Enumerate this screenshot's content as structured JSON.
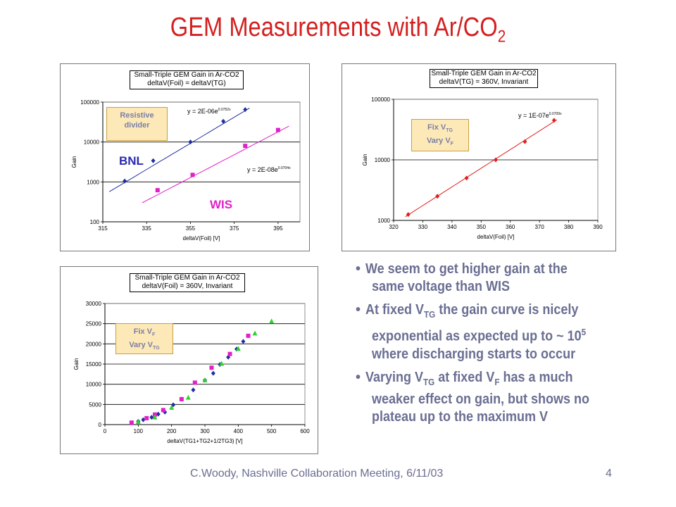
{
  "slide": {
    "title_main": "GEM Measurements with Ar/CO",
    "title_sub": "2",
    "footer": "C.Woody, Nashville Collaboration Meeting, 6/11/03",
    "page_number": "4",
    "title_color": "#d42020",
    "text_color": "#6a6e92"
  },
  "bullets": [
    {
      "rows": [
        [
          {
            "t": "We seem to get higher gain at the"
          }
        ],
        [
          {
            "t": "same voltage than WIS"
          }
        ]
      ]
    },
    {
      "rows": [
        [
          {
            "t": "At fixed V"
          },
          {
            "t": "TG",
            "sub": true
          },
          {
            "t": " the gain curve is nicely"
          }
        ],
        [
          {
            "t": "exponential as expected up to ~ 10"
          },
          {
            "t": "5",
            "sup": true
          }
        ],
        [
          {
            "t": "where discharging starts to occur"
          }
        ]
      ]
    },
    {
      "rows": [
        [
          {
            "t": "Varying V"
          },
          {
            "t": "TG",
            "sub": true
          },
          {
            "t": " at fixed V"
          },
          {
            "t": "F",
            "sub": true
          },
          {
            "t": " has a much"
          }
        ],
        [
          {
            "t": "weaker effect on gain, but shows no"
          }
        ],
        [
          {
            "t": "plateau up to the maximum V"
          }
        ]
      ]
    }
  ],
  "chart_data": [
    {
      "type": "scatter",
      "id": "chart1",
      "title_line1": "Small-Triple GEM Gain in Ar-CO2",
      "title_line2": "deltaV(Foil) = deltaV(TG)",
      "xlabel": "deltaV(Foil) [V]",
      "ylabel": "Gain",
      "xlim": [
        315,
        405
      ],
      "ylim": [
        100,
        100000
      ],
      "yscale": "log",
      "x_ticks": [
        315,
        335,
        355,
        375,
        395
      ],
      "x_tick_labels": [
        "315",
        "335",
        "355",
        "375",
        "395"
      ],
      "y_ticks": [
        100,
        1000,
        10000,
        100000
      ],
      "y_tick_labels": [
        "100",
        "1000",
        "10000",
        "100000"
      ],
      "grid": "horizontal",
      "callout": {
        "line1": "Resistive",
        "line2": "divider"
      },
      "series": [
        {
          "name": "BNL",
          "color": "#1f2fa0",
          "marker": "diamond",
          "label_color": "#2a2ab0",
          "x": [
            325,
            338,
            355,
            370,
            380
          ],
          "y": [
            1050,
            3400,
            10000,
            33000,
            65000
          ],
          "fit_eq": "y = 2E-06e",
          "fit_exp": "0.0752x",
          "fit_line": {
            "x": [
              318,
              382
            ],
            "y": [
              570,
              71000
            ]
          }
        },
        {
          "name": "WIS",
          "color": "#e020c8",
          "marker": "square",
          "label_color": "#e020c8",
          "x": [
            340,
            356,
            380,
            395
          ],
          "y": [
            620,
            1500,
            8000,
            20000
          ],
          "fit_eq": "y = 2E-08e",
          "fit_exp": "0.0704x",
          "fit_line": {
            "x": [
              333,
              400
            ],
            "y": [
              300,
              25000
            ]
          }
        }
      ]
    },
    {
      "type": "scatter",
      "id": "chart2",
      "title_line1": "Small-Triple GEM Gain in Ar-CO2",
      "title_line2": "deltaV(TG) = 360V, Invariant",
      "xlabel": "deltaV(Foil) [V]",
      "ylabel": "Gain",
      "xlim": [
        320,
        390
      ],
      "ylim": [
        1000,
        100000
      ],
      "yscale": "log",
      "x_ticks": [
        320,
        330,
        340,
        350,
        360,
        370,
        380,
        390
      ],
      "x_tick_labels": [
        "320",
        "330",
        "340",
        "350",
        "360",
        "370",
        "380",
        "390"
      ],
      "y_ticks": [
        1000,
        10000,
        100000
      ],
      "y_tick_labels": [
        "1000",
        "10000",
        "100000"
      ],
      "grid": "horizontal",
      "callout": {
        "line1": "Fix V",
        "line1_sub": "TG",
        "line2": "Vary V",
        "line2_sub": "F"
      },
      "series": [
        {
          "name": "",
          "color": "#e02020",
          "marker": "diamond",
          "x": [
            325,
            335,
            345,
            355,
            365,
            375
          ],
          "y": [
            1250,
            2500,
            5000,
            10000,
            20000,
            45000
          ],
          "fit_eq": "y = 1E-07e",
          "fit_exp": "0.0709x",
          "fit_line": {
            "x": [
              324,
              376
            ],
            "y": [
              1150,
              46000
            ]
          }
        }
      ]
    },
    {
      "type": "scatter",
      "id": "chart3",
      "title_line1": "Small-Triple GEM Gain in Ar-CO2",
      "title_line2": "deltaV(Foil) = 360V, Invariant",
      "xlabel": "deltaV(TG1+TG2+1/2TG3) [V]",
      "ylabel": "Gain",
      "xlim": [
        0,
        600
      ],
      "ylim": [
        0,
        30000
      ],
      "yscale": "linear",
      "x_ticks": [
        0,
        100,
        200,
        300,
        400,
        500,
        600
      ],
      "x_tick_labels": [
        "0",
        "100",
        "200",
        "300",
        "400",
        "500",
        "600"
      ],
      "y_ticks": [
        0,
        5000,
        10000,
        15000,
        20000,
        25000,
        30000
      ],
      "y_tick_labels": [
        "0",
        "5000",
        "10000",
        "15000",
        "20000",
        "25000",
        "30000"
      ],
      "grid": "horizontal",
      "callout": {
        "line1": "Fix V",
        "line1_sub": "F",
        "line2": "Vary V",
        "line2_sub": "TG"
      },
      "series": [
        {
          "name": "",
          "color": "#1f2fa0",
          "marker": "diamond",
          "x": [
            100,
            115,
            140,
            160,
            180,
            205,
            230,
            265,
            300,
            325,
            345,
            370,
            395,
            415
          ],
          "y": [
            800,
            1200,
            1800,
            2600,
            3100,
            4900,
            6300,
            8600,
            11000,
            12700,
            14900,
            16700,
            18700,
            20600
          ]
        },
        {
          "name": "",
          "color": "#e020c8",
          "marker": "square",
          "x": [
            80,
            125,
            150,
            175,
            230,
            270,
            320,
            375,
            430
          ],
          "y": [
            500,
            1600,
            2500,
            3600,
            6300,
            10400,
            14100,
            17500,
            22000
          ]
        },
        {
          "name": "",
          "color": "#30d030",
          "marker": "triangle",
          "x": [
            100,
            150,
            200,
            250,
            300,
            350,
            400,
            450,
            500
          ],
          "y": [
            700,
            1800,
            4200,
            6700,
            11000,
            15100,
            18800,
            22600,
            25600
          ]
        }
      ]
    }
  ]
}
